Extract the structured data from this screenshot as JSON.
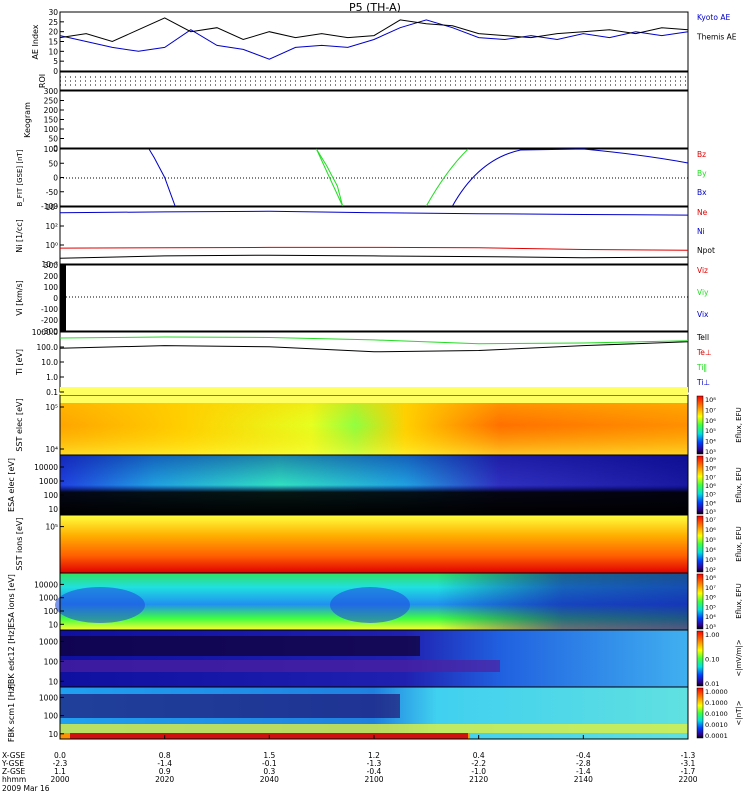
{
  "title": "P5 (TH-A)",
  "date": "2009 Mar 16",
  "colors": {
    "red": "#e00000",
    "green": "#22dd22",
    "blue": "#0000c8",
    "black": "#000000"
  },
  "ephemeris": {
    "row_labels": [
      "X-GSE",
      "Y-GSE",
      "Z-GSE",
      "hhmm"
    ],
    "columns": [
      {
        "x": "0.0",
        "y": "-2.3",
        "z": "1.1",
        "t": "2000"
      },
      {
        "x": "0.8",
        "y": "-1.4",
        "z": "0.9",
        "t": "2020"
      },
      {
        "x": "1.5",
        "y": "-0.1",
        "z": "0.3",
        "t": "2040"
      },
      {
        "x": "1.2",
        "y": "-1.3",
        "z": "-0.4",
        "t": "2100"
      },
      {
        "x": "0.4",
        "y": "-2.2",
        "z": "-1.0",
        "t": "2120"
      },
      {
        "x": "-0.4",
        "y": "-2.8",
        "z": "-1.4",
        "t": "2140"
      },
      {
        "x": "-1.3",
        "y": "-3.1",
        "z": "-1.7",
        "t": "2200"
      }
    ]
  },
  "chart_data": [
    {
      "type": "line",
      "panel": "ae",
      "ylabel": "AE Index",
      "ylim": [
        0,
        30
      ],
      "yticks": [
        "0",
        "5",
        "10",
        "15",
        "20",
        "25",
        "30"
      ],
      "series": [
        {
          "name": "Kyoto AE",
          "color": "#0000c8",
          "x": [
            0,
            5,
            10,
            15,
            20,
            25,
            30,
            35,
            40,
            45,
            50,
            55,
            60,
            65,
            70,
            75,
            80,
            85,
            90,
            95,
            100,
            105,
            110,
            115,
            120
          ],
          "values": [
            18,
            15,
            12,
            10,
            12,
            21,
            13,
            11,
            6,
            12,
            13,
            12,
            16,
            22,
            26,
            22,
            17,
            16,
            18,
            16,
            19,
            17,
            20,
            18,
            20
          ]
        },
        {
          "name": "Themis AE",
          "color": "#000000",
          "x": [
            0,
            5,
            10,
            15,
            20,
            25,
            30,
            35,
            40,
            45,
            50,
            55,
            60,
            65,
            70,
            75,
            80,
            85,
            90,
            95,
            100,
            105,
            110,
            115,
            120
          ],
          "values": [
            17,
            19,
            15,
            21,
            27,
            20,
            22,
            16,
            20,
            17,
            19,
            17,
            18,
            26,
            24,
            23,
            19,
            18,
            17,
            19,
            20,
            21,
            19,
            22,
            21
          ]
        }
      ]
    },
    {
      "type": "table",
      "panel": "roi",
      "ylabel": "ROI"
    },
    {
      "type": "line",
      "panel": "keogram",
      "ylabel": "Keogram",
      "ylim": [
        0,
        300
      ],
      "yticks": [
        "0",
        "50",
        "100",
        "150",
        "200",
        "250",
        "300"
      ]
    },
    {
      "type": "line",
      "panel": "bfit",
      "ylabel": "B_FIT [GSE] [nT]",
      "ylim": [
        -100,
        100
      ],
      "yticks": [
        "-100",
        "-50",
        "0",
        "50",
        "100"
      ],
      "series": [
        {
          "name": "Bz",
          "color": "#e00000",
          "x": [],
          "values": []
        },
        {
          "name": "By",
          "color": "#22dd22",
          "x": [
            49,
            50,
            51,
            52,
            53,
            54
          ],
          "values": [
            100,
            70,
            40,
            5,
            -30,
            -100
          ]
        },
        {
          "name": "Bx",
          "color": "#0000c8",
          "x": [
            17,
            18,
            19,
            20,
            21,
            22
          ],
          "values": [
            100,
            70,
            35,
            0,
            -50,
            -100
          ]
        }
      ]
    },
    {
      "type": "line",
      "panel": "density",
      "ylabel": "Ni [1/cc]",
      "yscale": "log",
      "ylim": [
        0.01,
        100000
      ],
      "yticks": [
        "10⁻²",
        "10⁰",
        "10²",
        "10⁴"
      ],
      "series": [
        {
          "name": "Ne",
          "color": "#e00000",
          "x": [
            0,
            20,
            40,
            60,
            80,
            100,
            120
          ],
          "values": [
            0.9,
            1.0,
            1.1,
            1.1,
            1.0,
            0.6,
            0.5
          ]
        },
        {
          "name": "Ni",
          "color": "#0000c8",
          "x": [
            0,
            20,
            40,
            60,
            80,
            100,
            120
          ],
          "values": [
            20000,
            25000,
            30000,
            20000,
            15000,
            12000,
            10000
          ]
        },
        {
          "name": "Npot",
          "color": "#000000",
          "x": [
            0,
            20,
            40,
            60,
            80,
            100,
            120
          ],
          "values": [
            0.05,
            0.1,
            0.12,
            0.1,
            0.08,
            0.06,
            0.07
          ]
        }
      ]
    },
    {
      "type": "line",
      "panel": "velocity",
      "ylabel": "Vi [km/s]",
      "ylim": [
        -350,
        350
      ],
      "yticks": [
        "-300",
        "-200",
        "-100",
        "0",
        "100",
        "200",
        "300"
      ],
      "series": [
        {
          "name": "Viz",
          "color": "#e00000"
        },
        {
          "name": "Viy",
          "color": "#22dd22"
        },
        {
          "name": "Vix",
          "color": "#0000c8"
        }
      ]
    },
    {
      "type": "line",
      "panel": "temperature",
      "ylabel": "Ti [eV]",
      "yscale": "log",
      "ylim": [
        0.05,
        3000
      ],
      "yticks": [
        "0.1",
        "1.0",
        "10.0",
        "100.0",
        "1000.0"
      ],
      "series": [
        {
          "name": "Tell",
          "color": "#000000",
          "x": [
            0,
            20,
            40,
            60,
            80,
            100,
            120
          ],
          "values": [
            150,
            250,
            200,
            80,
            100,
            250,
            500
          ]
        },
        {
          "name": "Te⊥",
          "color": "#e00000"
        },
        {
          "name": "Ti‖",
          "color": "#22dd22",
          "x": [
            0,
            20,
            40,
            60,
            80,
            100,
            120
          ],
          "values": [
            1000,
            1200,
            1100,
            700,
            350,
            400,
            600
          ]
        },
        {
          "name": "Ti⊥",
          "color": "#0000c8"
        }
      ]
    },
    {
      "type": "heatmap",
      "panel": "sst_e",
      "ylabel": "SST elec [eV]",
      "yticks": [
        "10⁵",
        "10⁴"
      ],
      "cbar_label": "Eflux, EFU",
      "cbar_ticks": [
        "10⁸",
        "10⁷",
        "10⁶",
        "10⁵",
        "10⁴",
        "10³"
      ]
    },
    {
      "type": "heatmap",
      "panel": "esa_e",
      "ylabel": "ESA elec [eV]",
      "yticks": [
        "10000",
        "1000",
        "100",
        "10"
      ],
      "cbar_label": "Eflux, EFU",
      "cbar_ticks": [
        "10⁹",
        "10⁸",
        "10⁷",
        "10⁶",
        "10⁵",
        "10⁴",
        "10³"
      ]
    },
    {
      "type": "heatmap",
      "panel": "sst_i",
      "ylabel": "SST ions [eV]",
      "yticks": [
        "10⁵"
      ],
      "cbar_label": "Eflux, EFU",
      "cbar_ticks": [
        "10⁷",
        "10⁶",
        "10⁵",
        "10⁴",
        "10³",
        "10²"
      ]
    },
    {
      "type": "heatmap",
      "panel": "esa_i",
      "ylabel": "ESA ions [eV]",
      "yticks": [
        "10000",
        "1000",
        "100",
        "10"
      ],
      "cbar_label": "Eflux, EFU",
      "cbar_ticks": [
        "10⁸",
        "10⁷",
        "10⁶",
        "10⁵",
        "10⁴",
        "10³"
      ]
    },
    {
      "type": "heatmap",
      "panel": "fbk_e",
      "ylabel": "FBK edc12 [Hz]",
      "yticks": [
        "1000",
        "100",
        "10"
      ],
      "cbar_label": "<|mV/m|>",
      "cbar_ticks": [
        "1.00",
        "0.10",
        "0.01"
      ]
    },
    {
      "type": "heatmap",
      "panel": "fbk_b",
      "ylabel": "FBK scm1 [Hz]",
      "yticks": [
        "1000",
        "100",
        "10"
      ],
      "cbar_label": "<|nT|>",
      "cbar_ticks": [
        "1.0000",
        "0.1000",
        "0.0100",
        "0.0010",
        "0.0001"
      ]
    }
  ]
}
